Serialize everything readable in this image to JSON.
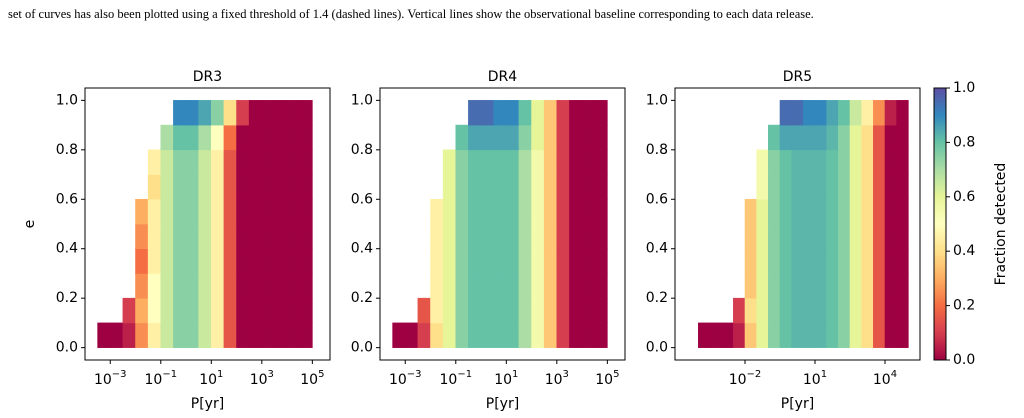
{
  "caption": "set of curves has also been plotted using a fixed threshold of 1.4 (dashed lines). Vertical lines show the observational baseline corresponding to each data release.",
  "chart_data": [
    {
      "type": "heatmap",
      "title": "DR3",
      "xlabel": "P[yr]",
      "ylabel": "e",
      "xscale": "log",
      "colormap": "Spectral",
      "xlim": [
        0.0001,
        500000
      ],
      "ylim": [
        -0.05,
        1.05
      ],
      "xticks": [
        {
          "value": 0.001,
          "label": "10−3"
        },
        {
          "value": 0.1,
          "label": "10−1"
        },
        {
          "value": 10,
          "label": "101"
        },
        {
          "value": 1000,
          "label": "103"
        },
        {
          "value": 100000,
          "label": "105"
        }
      ],
      "yticks": [
        {
          "value": 0,
          "label": "0.0"
        },
        0.2,
        0.4,
        0.6,
        0.8,
        {
          "value": 1,
          "label": "1.0"
        }
      ],
      "xbins": [
        0.00031623,
        0.001,
        0.0031623,
        0.01,
        0.031623,
        0.1,
        0.31623,
        1,
        3.1623,
        10,
        31.623,
        100,
        316.23,
        1000,
        3162.3,
        10000,
        31623,
        100000
      ],
      "ybins": [
        0,
        0.1,
        0.2,
        0.3,
        0.4,
        0.5,
        0.6,
        0.7,
        0.8,
        0.9,
        1.0
      ],
      "values": [
        [
          0,
          0,
          0.05,
          0.25,
          0.45,
          0.65,
          0.75,
          0.75,
          0.65,
          0.45,
          0.15,
          0,
          0,
          0,
          0,
          0,
          0
        ],
        [
          null,
          null,
          0.1,
          0.3,
          0.5,
          0.65,
          0.75,
          0.75,
          0.65,
          0.45,
          0.15,
          0,
          0,
          0,
          0,
          0,
          0
        ],
        [
          null,
          null,
          null,
          0.25,
          0.5,
          0.65,
          0.75,
          0.75,
          0.65,
          0.45,
          0.15,
          0,
          0,
          0,
          0,
          0,
          0
        ],
        [
          null,
          null,
          null,
          0.2,
          0.45,
          0.65,
          0.75,
          0.75,
          0.65,
          0.45,
          0.15,
          0,
          0,
          0,
          0,
          0,
          0
        ],
        [
          null,
          null,
          null,
          0.25,
          0.45,
          0.65,
          0.75,
          0.75,
          0.65,
          0.45,
          0.15,
          0,
          0,
          0,
          0,
          0,
          0
        ],
        [
          null,
          null,
          null,
          0.3,
          0.45,
          0.65,
          0.75,
          0.75,
          0.65,
          0.45,
          0.15,
          0,
          0,
          0,
          0,
          0,
          0
        ],
        [
          null,
          null,
          null,
          null,
          0.4,
          0.65,
          0.75,
          0.75,
          0.65,
          0.45,
          0.15,
          0,
          0,
          0,
          0,
          0,
          0
        ],
        [
          null,
          null,
          null,
          null,
          0.45,
          0.65,
          0.75,
          0.75,
          0.65,
          0.45,
          0.15,
          0,
          0,
          0,
          0,
          0,
          0
        ],
        [
          null,
          null,
          null,
          null,
          null,
          0.7,
          0.8,
          0.8,
          0.7,
          0.5,
          0.2,
          0,
          0,
          0,
          0,
          0,
          0
        ],
        [
          null,
          null,
          null,
          null,
          null,
          null,
          0.9,
          0.9,
          0.85,
          0.75,
          0.4,
          0.1,
          0,
          0,
          0,
          0,
          0
        ]
      ]
    },
    {
      "type": "heatmap",
      "title": "DR4",
      "xlabel": "P[yr]",
      "xscale": "log",
      "colormap": "Spectral",
      "xlim": [
        0.0001,
        500000
      ],
      "ylim": [
        -0.05,
        1.05
      ],
      "xticks": [
        {
          "value": 0.001,
          "label": "10−3"
        },
        {
          "value": 0.1,
          "label": "10−1"
        },
        {
          "value": 10,
          "label": "101"
        },
        {
          "value": 1000,
          "label": "103"
        },
        {
          "value": 100000,
          "label": "105"
        }
      ],
      "yticks": [
        {
          "value": 0,
          "label": "0.0"
        },
        0.2,
        0.4,
        0.6,
        0.8,
        {
          "value": 1,
          "label": "1.0"
        }
      ],
      "xbins": [
        0.00031623,
        0.001,
        0.0031623,
        0.01,
        0.031623,
        0.1,
        0.31623,
        1,
        3.1623,
        10,
        31.623,
        100,
        316.23,
        1000,
        3162.3,
        10000,
        31623,
        100000
      ],
      "ybins": [
        0,
        0.1,
        0.2,
        0.3,
        0.4,
        0.5,
        0.6,
        0.7,
        0.8,
        0.9,
        1.0
      ],
      "values": [
        [
          0,
          0,
          0.1,
          0.4,
          0.6,
          0.75,
          0.8,
          0.8,
          0.8,
          0.8,
          0.7,
          0.55,
          0.35,
          0.1,
          0,
          0,
          0
        ],
        [
          null,
          null,
          0.15,
          0.45,
          0.6,
          0.75,
          0.8,
          0.8,
          0.8,
          0.8,
          0.7,
          0.55,
          0.35,
          0.1,
          0,
          0,
          0
        ],
        [
          null,
          null,
          null,
          0.45,
          0.6,
          0.75,
          0.8,
          0.8,
          0.8,
          0.8,
          0.7,
          0.55,
          0.35,
          0.1,
          0,
          0,
          0
        ],
        [
          null,
          null,
          null,
          0.45,
          0.6,
          0.75,
          0.8,
          0.8,
          0.8,
          0.8,
          0.7,
          0.55,
          0.35,
          0.1,
          0,
          0,
          0
        ],
        [
          null,
          null,
          null,
          0.45,
          0.6,
          0.75,
          0.8,
          0.8,
          0.8,
          0.8,
          0.7,
          0.55,
          0.35,
          0.1,
          0,
          0,
          0
        ],
        [
          null,
          null,
          null,
          0.45,
          0.6,
          0.75,
          0.8,
          0.8,
          0.8,
          0.8,
          0.7,
          0.55,
          0.35,
          0.1,
          0,
          0,
          0
        ],
        [
          null,
          null,
          null,
          null,
          0.6,
          0.75,
          0.8,
          0.8,
          0.8,
          0.8,
          0.7,
          0.55,
          0.35,
          0.1,
          0,
          0,
          0
        ],
        [
          null,
          null,
          null,
          null,
          0.6,
          0.75,
          0.8,
          0.8,
          0.8,
          0.8,
          0.7,
          0.55,
          0.35,
          0.1,
          0,
          0,
          0
        ],
        [
          null,
          null,
          null,
          null,
          null,
          0.8,
          0.85,
          0.85,
          0.85,
          0.85,
          0.75,
          0.6,
          0.35,
          0.1,
          0,
          0,
          0
        ],
        [
          null,
          null,
          null,
          null,
          null,
          null,
          0.95,
          0.95,
          0.9,
          0.9,
          0.8,
          0.6,
          0.35,
          0.1,
          0,
          0,
          0
        ]
      ]
    },
    {
      "type": "heatmap",
      "title": "DR5",
      "xlabel": "P[yr]",
      "xscale": "log",
      "colormap": "Spectral",
      "xlim": [
        1e-05,
        316228
      ],
      "ylim": [
        -0.05,
        1.05
      ],
      "xticks": [
        {
          "value": 0.01,
          "label": "10−2"
        },
        {
          "value": 10,
          "label": "101"
        },
        {
          "value": 10000,
          "label": "104"
        }
      ],
      "yticks": [
        {
          "value": 0,
          "label": "0.0"
        },
        0.2,
        0.4,
        0.6,
        0.8,
        {
          "value": 1,
          "label": "1.0"
        }
      ],
      "xbins": [
        0.0001,
        0.00031623,
        0.001,
        0.0031623,
        0.01,
        0.031623,
        0.1,
        0.31623,
        1,
        3.1623,
        10,
        31.623,
        100,
        316.23,
        1000,
        3162.3,
        10000,
        31623,
        100000
      ],
      "ybins": [
        0,
        0.1,
        0.2,
        0.3,
        0.4,
        0.5,
        0.6,
        0.7,
        0.8,
        0.9,
        1.0
      ],
      "values": [
        [
          0,
          0,
          0,
          0.05,
          0.35,
          0.6,
          0.75,
          0.8,
          0.82,
          0.82,
          0.82,
          0.8,
          0.75,
          0.6,
          0.4,
          0.15,
          0,
          0
        ],
        [
          null,
          null,
          null,
          0.1,
          0.4,
          0.6,
          0.75,
          0.8,
          0.82,
          0.82,
          0.82,
          0.8,
          0.75,
          0.6,
          0.4,
          0.15,
          0,
          0
        ],
        [
          null,
          null,
          null,
          null,
          0.35,
          0.6,
          0.75,
          0.8,
          0.82,
          0.82,
          0.82,
          0.8,
          0.75,
          0.6,
          0.4,
          0.15,
          0,
          0
        ],
        [
          null,
          null,
          null,
          null,
          0.35,
          0.6,
          0.75,
          0.8,
          0.82,
          0.82,
          0.82,
          0.8,
          0.75,
          0.6,
          0.4,
          0.15,
          0,
          0
        ],
        [
          null,
          null,
          null,
          null,
          0.35,
          0.6,
          0.75,
          0.8,
          0.82,
          0.82,
          0.82,
          0.8,
          0.75,
          0.6,
          0.4,
          0.15,
          0,
          0
        ],
        [
          null,
          null,
          null,
          null,
          0.35,
          0.6,
          0.75,
          0.8,
          0.82,
          0.82,
          0.82,
          0.8,
          0.75,
          0.6,
          0.4,
          0.15,
          0,
          0
        ],
        [
          null,
          null,
          null,
          null,
          null,
          0.55,
          0.75,
          0.8,
          0.82,
          0.82,
          0.82,
          0.8,
          0.75,
          0.6,
          0.4,
          0.15,
          0,
          0
        ],
        [
          null,
          null,
          null,
          null,
          null,
          0.55,
          0.75,
          0.8,
          0.82,
          0.82,
          0.82,
          0.8,
          0.75,
          0.6,
          0.4,
          0.15,
          0,
          0
        ],
        [
          null,
          null,
          null,
          null,
          null,
          null,
          0.8,
          0.85,
          0.85,
          0.85,
          0.85,
          0.82,
          0.75,
          0.6,
          0.4,
          0.15,
          0,
          0
        ],
        [
          null,
          null,
          null,
          null,
          null,
          null,
          null,
          0.95,
          0.95,
          0.9,
          0.9,
          0.85,
          0.8,
          0.65,
          0.45,
          0.25,
          0.05,
          0
        ]
      ]
    },
    {
      "type": "colorbar",
      "label": "Fraction detected",
      "colormap": "Spectral",
      "ylim": [
        0,
        1
      ],
      "yticks": [
        {
          "value": 0,
          "label": "0.0"
        },
        0.2,
        0.4,
        0.6,
        0.8,
        {
          "value": 1,
          "label": "1.0"
        }
      ]
    }
  ]
}
